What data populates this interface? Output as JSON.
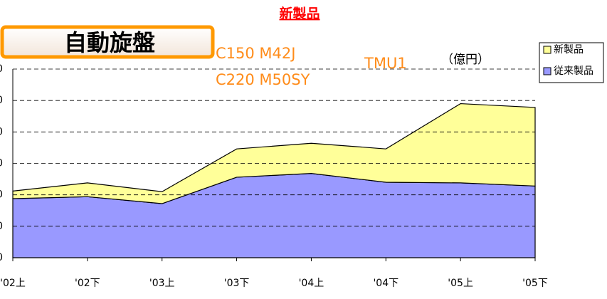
{
  "chart_data": {
    "type": "stacked-area",
    "title": "新製品",
    "unit_label": "（億円）",
    "box_label": "自動旋盤",
    "annotations": [
      "C150  M42J",
      "C220  M50SY",
      "TMU1"
    ],
    "categories": [
      "'02上",
      "'02下",
      "'03上",
      "'03下",
      "'04上",
      "'04下",
      "'05上",
      "'05下"
    ],
    "series": [
      {
        "name": "従来製品",
        "color": "#9999ff",
        "values": [
          94,
          97,
          86,
          128,
          134,
          120,
          119,
          114
        ]
      },
      {
        "name": "新製品",
        "color": "#ffff99",
        "values": [
          12,
          22,
          19,
          45,
          48,
          53,
          126,
          125
        ]
      }
    ],
    "ylim": [
      0,
      300
    ],
    "yticks": [
      0,
      50,
      100,
      150,
      200,
      250,
      300
    ],
    "grid": true
  }
}
